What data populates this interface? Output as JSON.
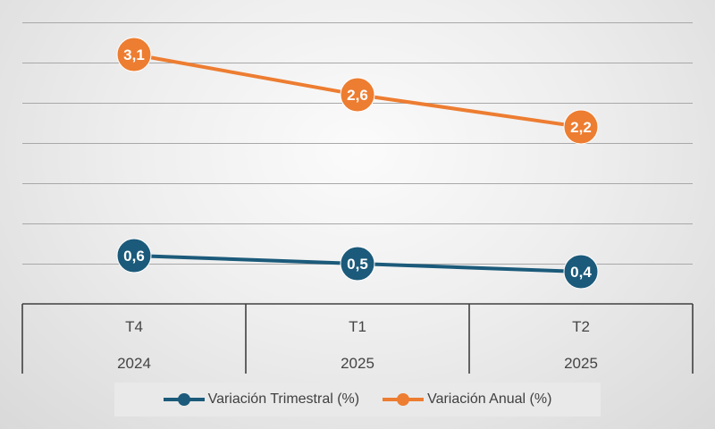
{
  "chart_data": {
    "type": "line",
    "categories": [
      {
        "quarter": "T4",
        "year": "2024"
      },
      {
        "quarter": "T1",
        "year": "2025"
      },
      {
        "quarter": "T2",
        "year": "2025"
      }
    ],
    "series": [
      {
        "name": "Variación Trimestral (%)",
        "color": "#1b5a7a",
        "values": [
          0.6,
          0.5,
          0.4
        ],
        "labels": [
          "0,6",
          "0,5",
          "0,4"
        ]
      },
      {
        "name": "Variación Anual (%)",
        "color": "#ed7d31",
        "values": [
          3.1,
          2.6,
          2.2
        ],
        "labels": [
          "3,1",
          "2,6",
          "2,2"
        ]
      }
    ],
    "ylim": [
      0,
      3.5
    ],
    "grid": true,
    "legend_position": "bottom",
    "title": "",
    "xlabel": "",
    "ylabel": ""
  }
}
